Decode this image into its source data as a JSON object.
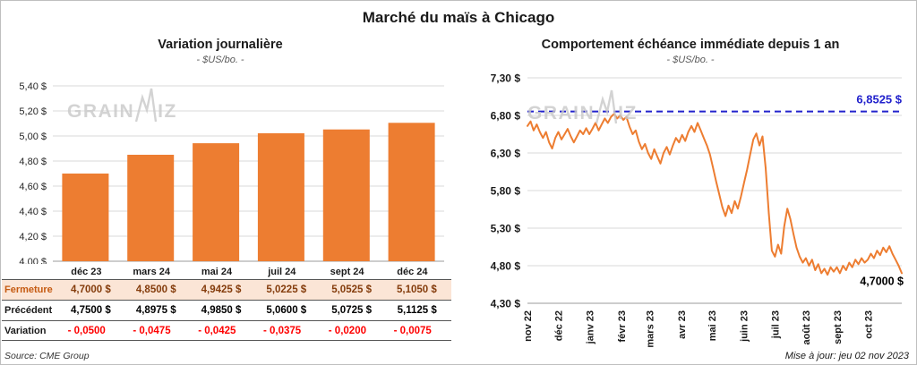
{
  "main_title": "Marché du maïs à Chicago",
  "watermark": {
    "part1": "GRAIN",
    "part2": "IZ"
  },
  "chart_data": [
    {
      "type": "bar",
      "title": "Variation journalière",
      "subtitle": "- $US/bo. -",
      "categories": [
        "déc 23",
        "mars 24",
        "mai 24",
        "juil 24",
        "sept 24",
        "déc 24"
      ],
      "values": [
        4.7,
        4.85,
        4.9425,
        5.0225,
        5.0525,
        5.105
      ],
      "ylim": [
        4.0,
        5.4
      ],
      "yticks": [
        "5,40 $",
        "5,20 $",
        "5,00 $",
        "4,80 $",
        "4,60 $",
        "4,40 $",
        "4,20 $",
        "4,00 $"
      ],
      "bar_color": "#ED7D31",
      "grid": true,
      "legend": "none"
    },
    {
      "type": "line",
      "title": "Comportement échéance immédiate depuis 1 an",
      "subtitle": "- $US/bo. -",
      "x_labels": [
        "nov 22",
        "déc 22",
        "janv 23",
        "févr 23",
        "mars 23",
        "avr 23",
        "mai 23",
        "juin 23",
        "juil 23",
        "août 23",
        "sept 23",
        "oct 23"
      ],
      "x_positions": [
        0,
        0.082,
        0.166,
        0.251,
        0.327,
        0.411,
        0.493,
        0.578,
        0.661,
        0.744,
        0.828,
        0.91
      ],
      "values": [
        6.66,
        6.72,
        6.6,
        6.68,
        6.58,
        6.5,
        6.58,
        6.44,
        6.36,
        6.5,
        6.58,
        6.48,
        6.55,
        6.62,
        6.52,
        6.44,
        6.52,
        6.6,
        6.55,
        6.63,
        6.55,
        6.62,
        6.7,
        6.6,
        6.68,
        6.76,
        6.7,
        6.78,
        6.82,
        6.76,
        6.8,
        6.74,
        6.78,
        6.65,
        6.55,
        6.6,
        6.45,
        6.35,
        6.42,
        6.3,
        6.22,
        6.35,
        6.25,
        6.16,
        6.3,
        6.38,
        6.28,
        6.4,
        6.5,
        6.44,
        6.54,
        6.46,
        6.58,
        6.66,
        6.58,
        6.7,
        6.6,
        6.5,
        6.4,
        6.28,
        6.1,
        5.92,
        5.75,
        5.58,
        5.46,
        5.6,
        5.5,
        5.66,
        5.56,
        5.72,
        5.9,
        6.08,
        6.28,
        6.48,
        6.56,
        6.4,
        6.52,
        6.1,
        5.5,
        5.0,
        4.92,
        5.08,
        4.96,
        5.32,
        5.56,
        5.42,
        5.22,
        5.04,
        4.92,
        4.84,
        4.9,
        4.8,
        4.88,
        4.74,
        4.82,
        4.7,
        4.76,
        4.68,
        4.78,
        4.72,
        4.78,
        4.7,
        4.8,
        4.74,
        4.84,
        4.78,
        4.88,
        4.82,
        4.9,
        4.84,
        4.88,
        4.96,
        4.9,
        5.0,
        4.94,
        5.04,
        4.98,
        5.06,
        4.96,
        4.88,
        4.8,
        4.7
      ],
      "ylim": [
        4.3,
        7.3
      ],
      "yticks": [
        "7,30 $",
        "6,80 $",
        "6,30 $",
        "5,80 $",
        "5,30 $",
        "4,80 $",
        "4,30 $"
      ],
      "line_color": "#ED7D31",
      "reference_line": {
        "value": 6.8525,
        "label": "6,8525 $",
        "color": "#2222CC"
      },
      "end_value": 4.7,
      "end_label": "4,7000 $",
      "grid": true,
      "legend": "none"
    }
  ],
  "table": {
    "rows": [
      {
        "label": "Fermeture",
        "style": "fermeture",
        "values": [
          "4,7000 $",
          "4,8500 $",
          "4,9425 $",
          "5,0225 $",
          "5,0525 $",
          "5,1050 $"
        ]
      },
      {
        "label": "Précédent",
        "style": "precedent",
        "values": [
          "4,7500 $",
          "4,8975 $",
          "4,9850 $",
          "5,0600 $",
          "5,0725 $",
          "5,1125 $"
        ]
      },
      {
        "label": "Variation",
        "style": "variation",
        "values": [
          "- 0,0500",
          "- 0,0475",
          "- 0,0425",
          "- 0,0375",
          "- 0,0200",
          "- 0,0075"
        ]
      }
    ]
  },
  "footer": {
    "source": "Source: CME Group",
    "updated": "Mise à jour: jeu 02 nov 2023"
  }
}
